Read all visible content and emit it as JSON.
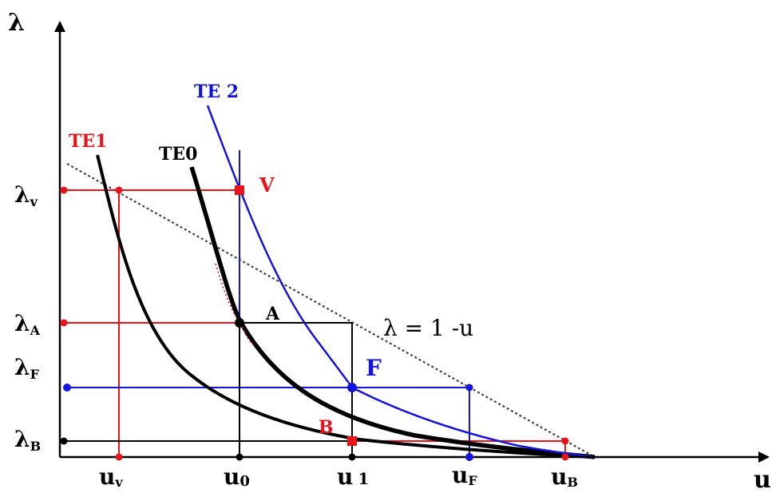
{
  "axes": {
    "y_label": "λ",
    "x_label": "u"
  },
  "curves": {
    "te1": {
      "label": "TE1",
      "color": "#e8141b"
    },
    "te0": {
      "label": "TE0",
      "color": "#000000"
    },
    "te2": {
      "label": "TE 2",
      "color": "#1414e0"
    }
  },
  "line": {
    "equation": "λ = 1 -u"
  },
  "points": {
    "v": {
      "label": "V",
      "color": "#e8141b"
    },
    "a": {
      "label": "A",
      "color": "#000000"
    },
    "f": {
      "label": "F",
      "color": "#1414e0"
    },
    "b": {
      "label": "B",
      "color": "#e8141b"
    }
  },
  "y_ticks": [
    {
      "main": "λ",
      "sub": "v"
    },
    {
      "main": "λ",
      "sub": "A"
    },
    {
      "main": "λ",
      "sub": "F"
    },
    {
      "main": "λ",
      "sub": "B"
    }
  ],
  "x_ticks": [
    {
      "main": "u",
      "sub": "v"
    },
    {
      "main": "u",
      "sub": "0"
    },
    {
      "main": "u",
      "sub": "1"
    },
    {
      "main": "u",
      "sub": "F"
    },
    {
      "main": "u",
      "sub": "B"
    }
  ],
  "colors": {
    "red": "#e8141b",
    "blue": "#1414e0",
    "black": "#000000"
  }
}
